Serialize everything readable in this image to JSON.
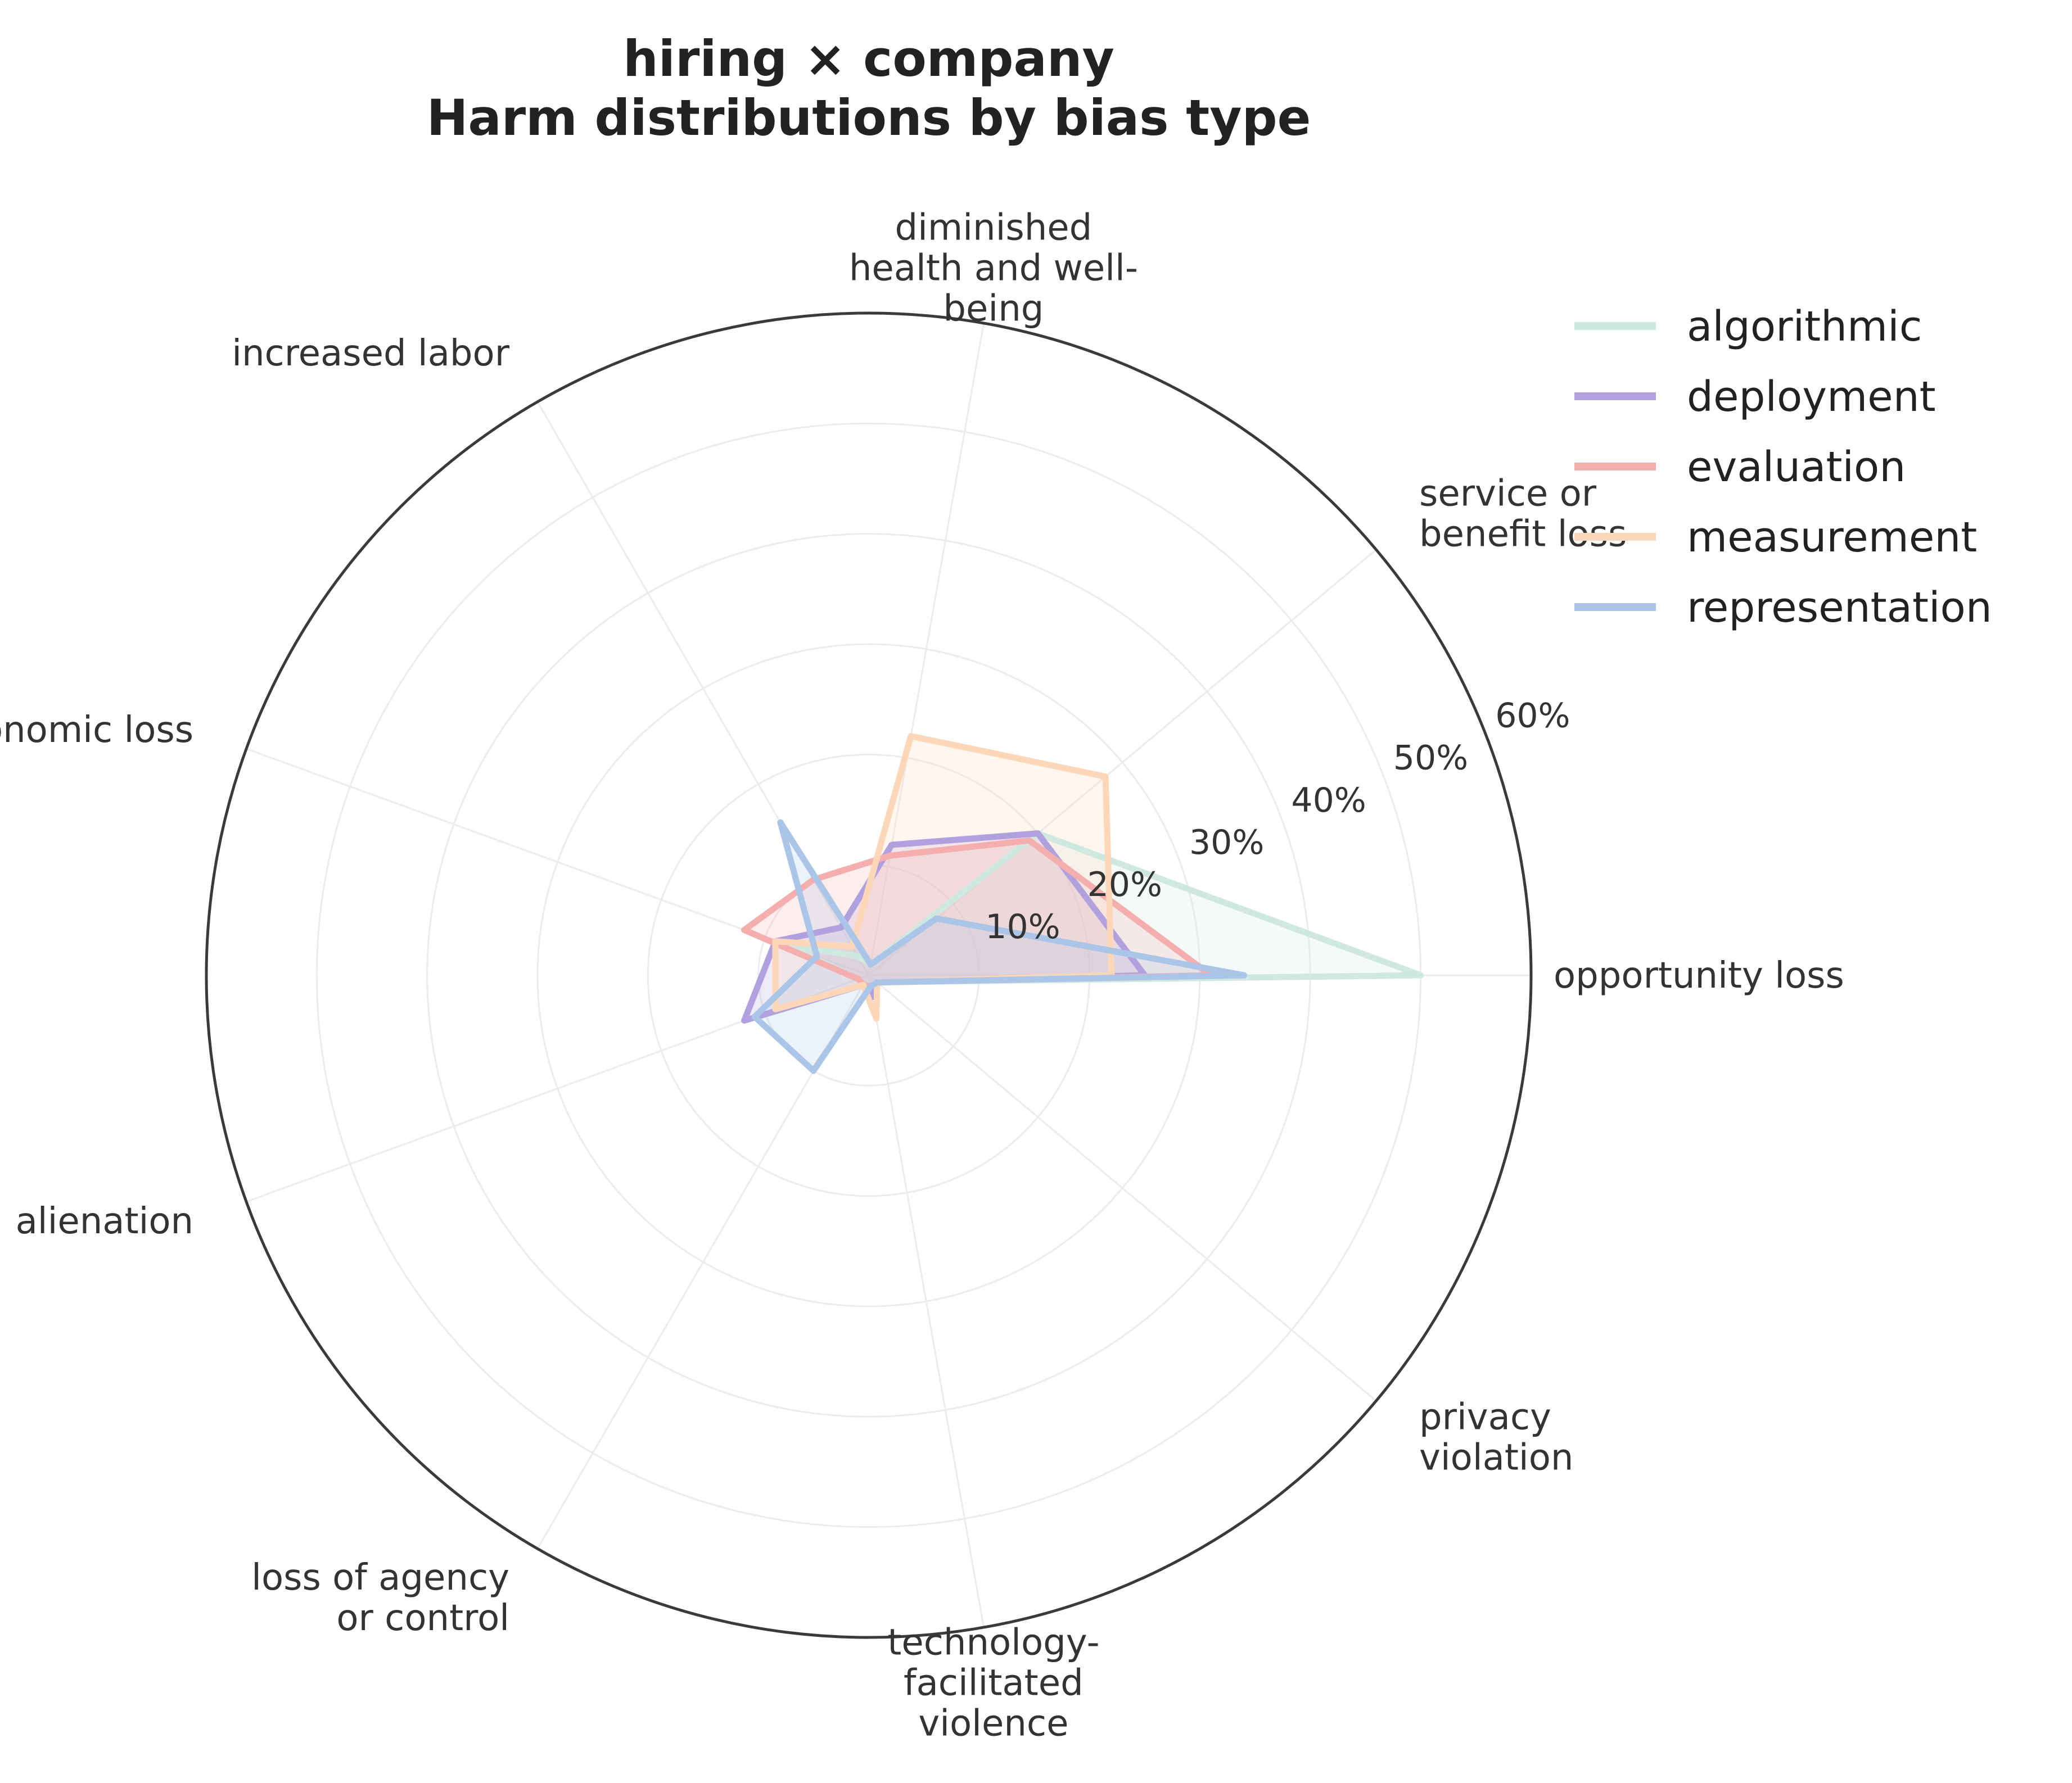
{
  "chart_data": {
    "type": "radar",
    "title": [
      "hiring × company",
      "Harm distributions by bias type"
    ],
    "categories": [
      "opportunity loss",
      "service or benefit loss",
      "diminished health and well-being",
      "increased labor",
      "economic loss",
      "alienation",
      "loss of agency or control",
      "technology-facilitated violence",
      "privacy violation"
    ],
    "category_label_lines": [
      [
        "opportunity loss"
      ],
      [
        "service or",
        "benefit loss"
      ],
      [
        "diminished",
        "health and well-",
        "being"
      ],
      [
        "increased labor"
      ],
      [
        "economic loss"
      ],
      [
        "alienation"
      ],
      [
        "loss of agency",
        "or control"
      ],
      [
        "technology-",
        "facilitated",
        "violence"
      ],
      [
        "privacy",
        "violation"
      ]
    ],
    "r_ticks": [
      "10%",
      "20%",
      "30%",
      "40%",
      "50%",
      "60%"
    ],
    "r_tick_values": [
      10,
      20,
      30,
      40,
      50,
      60
    ],
    "rlim": [
      0,
      60
    ],
    "grid": true,
    "legend_position": "top-right",
    "series": [
      {
        "name": "algorithmic",
        "color": "#cfe8e0",
        "values": [
          50,
          20,
          1,
          2,
          8,
          1,
          1,
          1,
          1
        ]
      },
      {
        "name": "deployment",
        "color": "#b1a0de",
        "values": [
          25,
          20,
          12,
          5,
          9,
          12,
          1,
          2,
          1
        ]
      },
      {
        "name": "evaluation",
        "color": "#f4aeae",
        "values": [
          31,
          19,
          11,
          10,
          12,
          1,
          1,
          1,
          1
        ]
      },
      {
        "name": "measurement",
        "color": "#fdd7b7",
        "values": [
          22,
          28,
          22,
          3,
          9,
          9,
          1,
          4,
          1
        ]
      },
      {
        "name": "representation",
        "color": "#aac5e8",
        "values": [
          34,
          8,
          1,
          16,
          5,
          11,
          10,
          1,
          1
        ]
      }
    ]
  }
}
